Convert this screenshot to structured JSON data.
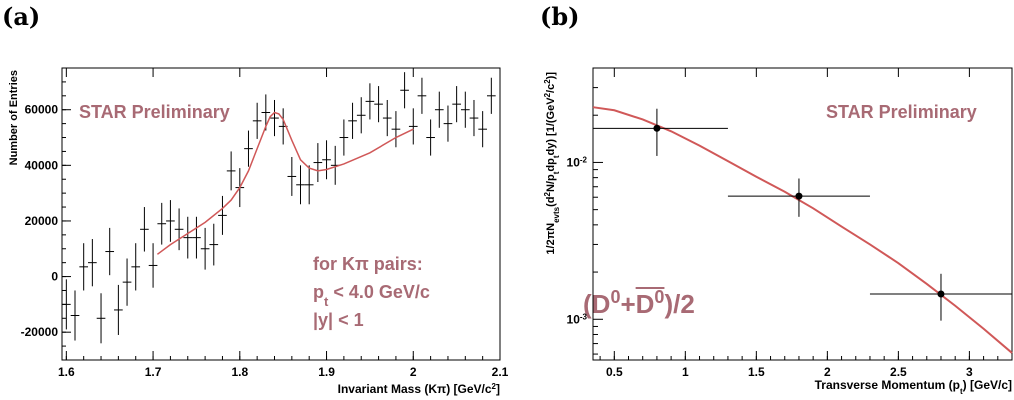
{
  "panel_labels": [
    "(a)",
    "(b)"
  ],
  "chart_data": [
    {
      "type": "scatter",
      "xlabel": "Invariant Mass (Kπ) [GeV/c²]",
      "ylabel": "Number of Entries",
      "xlim": [
        1.595,
        2.1
      ],
      "ylim": [
        -30000,
        75000
      ],
      "xticks": [
        1.6,
        1.7,
        1.8,
        1.9,
        2.0,
        2.1
      ],
      "xtick_labels": [
        "1.6",
        "1.7",
        "1.8",
        "1.9",
        "2",
        "2.1"
      ],
      "yticks": [
        -20000,
        0,
        20000,
        40000,
        60000
      ],
      "ytick_labels": [
        "-20000",
        "0",
        "20000",
        "40000",
        "60000"
      ],
      "annotations": {
        "preliminary": "STAR Preliminary",
        "cut_title": "for Kπ pairs:",
        "cut_pt": "p_t < 4.0 GeV/c",
        "cut_y": "|y| < 1"
      },
      "series": [
        {
          "style": "crosses",
          "x_error": 0.005,
          "x": [
            1.6,
            1.61,
            1.62,
            1.63,
            1.64,
            1.65,
            1.66,
            1.67,
            1.68,
            1.69,
            1.7,
            1.71,
            1.72,
            1.73,
            1.74,
            1.75,
            1.76,
            1.77,
            1.78,
            1.79,
            1.8,
            1.81,
            1.82,
            1.83,
            1.84,
            1.85,
            1.86,
            1.87,
            1.88,
            1.89,
            1.9,
            1.91,
            1.92,
            1.93,
            1.94,
            1.95,
            1.96,
            1.97,
            1.98,
            1.99,
            2.0,
            2.01,
            2.02,
            2.03,
            2.04,
            2.05,
            2.06,
            2.07,
            2.08,
            2.09
          ],
          "y": [
            -10000,
            -14000,
            3500,
            5000,
            -15000,
            9000,
            -12000,
            -2000,
            3500,
            17000,
            4000,
            19000,
            20000,
            17000,
            14000,
            14000,
            10000,
            11500,
            22000,
            38000,
            32000,
            46000,
            56000,
            59000,
            57000,
            54000,
            36000,
            33000,
            33000,
            41000,
            42000,
            40000,
            50000,
            56000,
            58000,
            63000,
            62000,
            57000,
            53000,
            67000,
            54000,
            65000,
            50000,
            60000,
            55000,
            62000,
            60000,
            57000,
            53000,
            65000
          ],
          "y_error": [
            9000,
            9000,
            8500,
            8500,
            9000,
            8500,
            9000,
            8500,
            8500,
            8000,
            8000,
            7500,
            7500,
            7500,
            7500,
            7500,
            7500,
            7500,
            7000,
            7000,
            7000,
            6500,
            6500,
            6500,
            6500,
            6500,
            7000,
            7000,
            7000,
            7000,
            7000,
            7000,
            6500,
            6500,
            6500,
            6500,
            6500,
            6500,
            6500,
            6500,
            6500,
            6500,
            6500,
            6500,
            6500,
            6500,
            6500,
            6500,
            6500,
            6500
          ]
        },
        {
          "style": "fit",
          "color": "#d05858",
          "x": [
            1.705,
            1.72,
            1.74,
            1.76,
            1.78,
            1.79,
            1.8,
            1.81,
            1.82,
            1.83,
            1.835,
            1.84,
            1.845,
            1.85,
            1.86,
            1.87,
            1.88,
            1.89,
            1.9,
            1.92,
            1.95,
            1.98,
            2.0
          ],
          "y": [
            8000,
            11500,
            15500,
            19500,
            24500,
            27500,
            32000,
            38000,
            46000,
            54000,
            57500,
            59000,
            58500,
            56500,
            49000,
            42000,
            39000,
            38000,
            38500,
            40500,
            44500,
            50000,
            53000
          ]
        }
      ]
    },
    {
      "type": "scatter",
      "xlabel": "Transverse Momentum (p_t) [GeV/c]",
      "ylabel": "1/2πN_evts(d²N/p_t dp_t dy) [1/(GeV²/c²)]",
      "xlim": [
        0.35,
        3.3
      ],
      "ylim": [
        0.00055,
        0.04
      ],
      "log_y": true,
      "xticks": [
        0.5,
        1,
        1.5,
        2,
        2.5,
        3
      ],
      "xtick_labels": [
        "0.5",
        "1",
        "1.5",
        "2",
        "2.5",
        "3"
      ],
      "ytick_labels": [
        "10⁻³",
        "10⁻²"
      ],
      "annotations": {
        "preliminary": "STAR Preliminary",
        "formula": "(D⁰+D⁰)/2"
      },
      "series": [
        {
          "style": "points",
          "x": [
            0.8,
            1.8,
            2.8
          ],
          "y": [
            0.0165,
            0.0061,
            0.00145
          ],
          "x_low": [
            0.3,
            1.3,
            2.3
          ],
          "x_high": [
            1.3,
            2.3,
            3.3
          ],
          "y_low": [
            0.011,
            0.0045,
            0.00098
          ],
          "y_high": [
            0.022,
            0.0079,
            0.00195
          ]
        },
        {
          "style": "fit",
          "color": "#d05858",
          "x": [
            0.35,
            0.5,
            0.7,
            0.9,
            1.1,
            1.3,
            1.5,
            1.7,
            1.9,
            2.1,
            2.3,
            2.5,
            2.7,
            2.9,
            3.1,
            3.3
          ],
          "y": [
            0.0225,
            0.0215,
            0.0188,
            0.0158,
            0.0128,
            0.0102,
            0.0081,
            0.0065,
            0.0051,
            0.0039,
            0.003,
            0.00228,
            0.00168,
            0.00122,
            0.00087,
            0.00061
          ]
        }
      ]
    }
  ]
}
